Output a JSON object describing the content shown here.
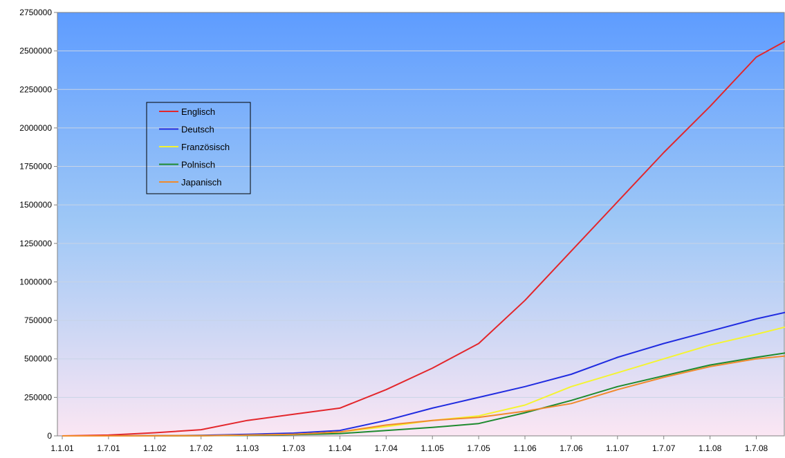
{
  "chart_data": {
    "type": "line",
    "title": "",
    "xlabel": "",
    "ylabel": "",
    "x_tick_labels": [
      "1.1.01",
      "1.7.01",
      "1.1.02",
      "1.7.02",
      "1.1.03",
      "1.7.03",
      "1.1.04",
      "1.7.04",
      "1.1.05",
      "1.7.05",
      "1.1.06",
      "1.7.06",
      "1.1.07",
      "1.7.07",
      "1.1.08",
      "1.7.08"
    ],
    "y_ticks": [
      0,
      250000,
      500000,
      750000,
      1000000,
      1250000,
      1500000,
      1750000,
      2000000,
      2250000,
      2500000,
      2750000
    ],
    "ylim": [
      0,
      2750000
    ],
    "grid": "horizontal",
    "legend_position": "upper-left",
    "background": "vertical gradient blue (top) to pink (bottom)",
    "series": [
      {
        "name": "Englisch",
        "color": "#e3262b",
        "points": [
          [
            "1.1.01",
            0
          ],
          [
            "1.7.01",
            5000
          ],
          [
            "1.1.02",
            20000
          ],
          [
            "1.7.02",
            40000
          ],
          [
            "1.1.03",
            100000
          ],
          [
            "1.7.03",
            140000
          ],
          [
            "1.1.04",
            180000
          ],
          [
            "1.7.04",
            300000
          ],
          [
            "1.1.05",
            440000
          ],
          [
            "1.7.05",
            600000
          ],
          [
            "1.1.06",
            880000
          ],
          [
            "1.7.06",
            1200000
          ],
          [
            "1.1.07",
            1520000
          ],
          [
            "1.7.07",
            1840000
          ],
          [
            "1.1.08",
            2140000
          ],
          [
            "1.7.08",
            2460000
          ],
          [
            "1.11.08",
            2570000
          ]
        ]
      },
      {
        "name": "Deutsch",
        "color": "#1f2be0",
        "points": [
          [
            "1.1.01",
            0
          ],
          [
            "1.7.01",
            0
          ],
          [
            "1.1.02",
            1000
          ],
          [
            "1.7.02",
            3000
          ],
          [
            "1.1.03",
            10000
          ],
          [
            "1.7.03",
            18000
          ],
          [
            "1.1.04",
            35000
          ],
          [
            "1.7.04",
            100000
          ],
          [
            "1.1.05",
            180000
          ],
          [
            "1.7.05",
            250000
          ],
          [
            "1.1.06",
            320000
          ],
          [
            "1.7.06",
            400000
          ],
          [
            "1.1.07",
            510000
          ],
          [
            "1.7.07",
            600000
          ],
          [
            "1.1.08",
            680000
          ],
          [
            "1.7.08",
            760000
          ],
          [
            "1.11.08",
            805000
          ]
        ]
      },
      {
        "name": "Französisch",
        "color": "#f4f430",
        "points": [
          [
            "1.1.01",
            0
          ],
          [
            "1.7.01",
            0
          ],
          [
            "1.1.02",
            500
          ],
          [
            "1.7.02",
            1500
          ],
          [
            "1.1.03",
            5000
          ],
          [
            "1.7.03",
            10000
          ],
          [
            "1.1.04",
            25000
          ],
          [
            "1.7.04",
            60000
          ],
          [
            "1.1.05",
            100000
          ],
          [
            "1.7.05",
            130000
          ],
          [
            "1.1.06",
            200000
          ],
          [
            "1.7.06",
            320000
          ],
          [
            "1.1.07",
            410000
          ],
          [
            "1.7.07",
            500000
          ],
          [
            "1.1.08",
            590000
          ],
          [
            "1.7.08",
            660000
          ],
          [
            "1.11.08",
            710000
          ]
        ]
      },
      {
        "name": "Polnisch",
        "color": "#1d8a2e",
        "points": [
          [
            "1.1.01",
            0
          ],
          [
            "1.7.01",
            0
          ],
          [
            "1.1.02",
            300
          ],
          [
            "1.7.02",
            1000
          ],
          [
            "1.1.03",
            3000
          ],
          [
            "1.7.03",
            8000
          ],
          [
            "1.1.04",
            15000
          ],
          [
            "1.7.04",
            35000
          ],
          [
            "1.1.05",
            55000
          ],
          [
            "1.7.05",
            80000
          ],
          [
            "1.1.06",
            150000
          ],
          [
            "1.7.06",
            230000
          ],
          [
            "1.1.07",
            320000
          ],
          [
            "1.7.07",
            390000
          ],
          [
            "1.1.08",
            460000
          ],
          [
            "1.7.08",
            510000
          ],
          [
            "1.11.08",
            540000
          ]
        ]
      },
      {
        "name": "Japanisch",
        "color": "#f08a2c",
        "points": [
          [
            "1.1.01",
            0
          ],
          [
            "1.7.01",
            0
          ],
          [
            "1.1.02",
            300
          ],
          [
            "1.7.02",
            1500
          ],
          [
            "1.1.03",
            5000
          ],
          [
            "1.7.03",
            10000
          ],
          [
            "1.1.04",
            25000
          ],
          [
            "1.7.04",
            70000
          ],
          [
            "1.1.05",
            100000
          ],
          [
            "1.7.05",
            120000
          ],
          [
            "1.1.06",
            160000
          ],
          [
            "1.7.06",
            210000
          ],
          [
            "1.1.07",
            300000
          ],
          [
            "1.7.07",
            380000
          ],
          [
            "1.1.08",
            450000
          ],
          [
            "1.7.08",
            500000
          ],
          [
            "1.11.08",
            520000
          ]
        ]
      }
    ]
  }
}
